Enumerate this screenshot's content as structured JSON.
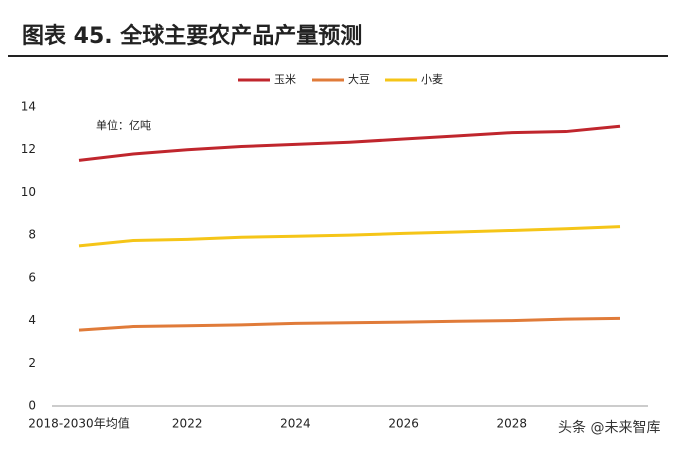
{
  "header": {
    "title": "图表 45. 全球主要农产品产量预测"
  },
  "watermark": "头条 @未来智库",
  "chart_data": {
    "type": "line",
    "unit_note": "单位：亿吨",
    "categories": [
      "2018-2030年均值",
      null,
      "2022",
      null,
      "2024",
      null,
      "2026",
      null,
      "2028",
      null,
      null
    ],
    "series": [
      {
        "name": "玉米",
        "color": "#c0262d",
        "values": [
          11.5,
          11.8,
          12.0,
          12.15,
          12.25,
          12.35,
          12.5,
          12.65,
          12.8,
          12.85,
          13.1
        ]
      },
      {
        "name": "大豆",
        "color": "#e07b39",
        "values": [
          3.55,
          3.72,
          3.76,
          3.8,
          3.87,
          3.9,
          3.93,
          3.97,
          4.0,
          4.07,
          4.1
        ]
      },
      {
        "name": "小麦",
        "color": "#f5c518",
        "values": [
          7.5,
          7.75,
          7.8,
          7.9,
          7.95,
          8.0,
          8.08,
          8.15,
          8.22,
          8.3,
          8.4
        ]
      }
    ],
    "ylim": [
      0,
      14
    ],
    "yticks": [
      0,
      2,
      4,
      6,
      8,
      10,
      12,
      14
    ]
  }
}
